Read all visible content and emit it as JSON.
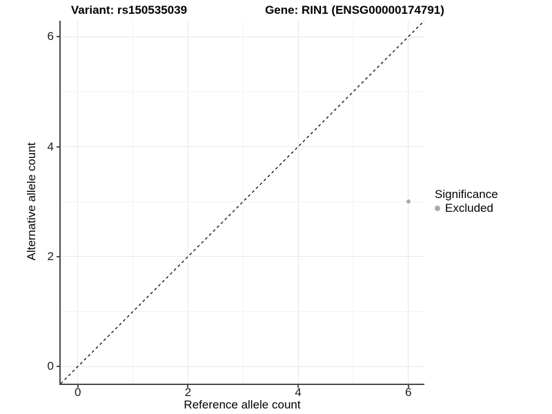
{
  "chart_data": {
    "type": "scatter",
    "title_left": "Variant: rs150535039",
    "title_right": "Gene: RIN1 (ENSG00000174791)",
    "xlabel": "Reference allele count",
    "ylabel": "Alternative allele count",
    "xlim": [
      -0.31,
      6.29
    ],
    "ylim": [
      -0.31,
      6.29
    ],
    "x_ticks": [
      0,
      2,
      4,
      6
    ],
    "y_ticks": [
      0,
      2,
      4,
      6
    ],
    "x_minor_ticks": [
      1,
      3,
      5
    ],
    "y_minor_ticks": [
      1,
      3,
      5
    ],
    "grid": "on",
    "identity_line": {
      "style": "dashed",
      "from": [
        -0.31,
        -0.31
      ],
      "to": [
        6.29,
        6.29
      ],
      "color": "#000000"
    },
    "series": [
      {
        "name": "Excluded",
        "color": "#aaaaaa",
        "points": [
          {
            "x": 6,
            "y": 3
          }
        ]
      }
    ],
    "legend": {
      "title": "Significance",
      "position": "right",
      "entries": [
        {
          "label": "Excluded",
          "color": "#aaaaaa",
          "marker": "circle"
        }
      ]
    },
    "colors": {
      "grid_major": "#e8e8e8",
      "grid_minor": "#f3f3f3",
      "axis_line": "#4a4a4a",
      "tick_label": "#1a1a1a",
      "dashed_line": "#000000"
    }
  }
}
